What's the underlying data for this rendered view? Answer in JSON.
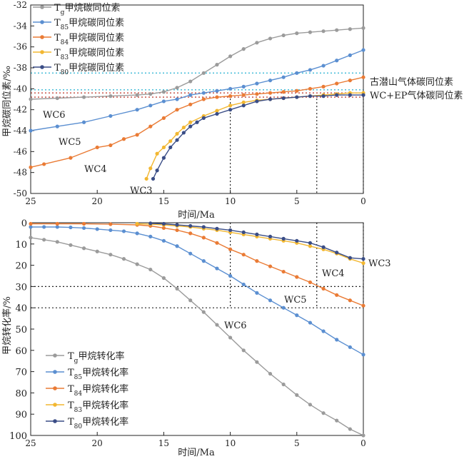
{
  "chart_data": [
    {
      "type": "line",
      "xlabel": "时间/Ma",
      "ylabel": "甲烷碳同位素/‰",
      "xlim": [
        25,
        0
      ],
      "ylim": [
        -50,
        -32
      ],
      "xticks": [
        "25",
        "20",
        "15",
        "10",
        "5",
        "0"
      ],
      "yticks": [
        "-32",
        "-34",
        "-36",
        "-38",
        "-40",
        "-42",
        "-44",
        "-46",
        "-48",
        "-50"
      ],
      "legend_position": "top-center",
      "series": [
        {
          "name": "Tg甲烷碳同位素",
          "color": "#9b9b9b",
          "x": [
            25,
            23,
            21,
            19,
            17,
            16,
            15,
            14,
            13,
            12,
            11,
            10,
            9,
            8,
            7,
            6,
            5,
            4,
            3,
            2,
            1,
            0
          ],
          "y": [
            -41,
            -40.9,
            -40.8,
            -40.7,
            -40.6,
            -40.5,
            -40.3,
            -39.9,
            -39.3,
            -38.5,
            -37.7,
            -36.9,
            -36.2,
            -35.6,
            -35.2,
            -34.9,
            -34.7,
            -34.6,
            -34.5,
            -34.4,
            -34.3,
            -34.2
          ]
        },
        {
          "name": "T85甲烷碳同位素",
          "color": "#5b8fd1",
          "x": [
            25,
            23,
            21,
            19,
            17,
            16,
            15,
            14,
            13,
            12,
            11,
            10,
            9,
            8,
            7,
            6,
            5,
            4,
            3,
            2,
            1,
            0
          ],
          "y": [
            -44,
            -43.6,
            -43.2,
            -42.6,
            -42,
            -41.6,
            -41.2,
            -41,
            -40.6,
            -40.4,
            -40.2,
            -40,
            -39.8,
            -39.5,
            -39.2,
            -38.9,
            -38.5,
            -38.2,
            -37.8,
            -37.3,
            -36.8,
            -36.3
          ]
        },
        {
          "name": "T84甲烷碳同位素",
          "color": "#ea7b35",
          "x": [
            25,
            24,
            22,
            20,
            19,
            18,
            17,
            16,
            15,
            14,
            13,
            12,
            11,
            10,
            9,
            8,
            7,
            6,
            5,
            4,
            3,
            2,
            1,
            0
          ],
          "y": [
            -47.5,
            -47.2,
            -46.6,
            -45.6,
            -45.4,
            -44.8,
            -44.4,
            -43.6,
            -42.8,
            -42,
            -41.5,
            -41,
            -40.8,
            -40.7,
            -40.6,
            -40.5,
            -40.4,
            -40.3,
            -40.2,
            -40,
            -39.8,
            -39.5,
            -39.2,
            -38.9
          ]
        },
        {
          "name": "T83甲烷碳同位素",
          "color": "#f2b731",
          "x": [
            16.3,
            16,
            15.5,
            15,
            14.5,
            14,
            13.5,
            13,
            12,
            11,
            10,
            9,
            8,
            7,
            6,
            5,
            4,
            3,
            2,
            1,
            0
          ],
          "y": [
            -48.6,
            -47.6,
            -46.2,
            -45.6,
            -45,
            -44.3,
            -43.7,
            -43.2,
            -42.6,
            -42.1,
            -41.6,
            -41.3,
            -41.1,
            -41,
            -40.9,
            -40.8,
            -40.7,
            -40.6,
            -40.5,
            -40.4,
            -40.4
          ]
        },
        {
          "name": "T80甲烷碳同位素",
          "color": "#3a4d86",
          "x": [
            15.8,
            15.5,
            15,
            14.5,
            14,
            13.5,
            13,
            12.5,
            12,
            11,
            10,
            9,
            8,
            7,
            6,
            5,
            4,
            3,
            2,
            1,
            0
          ],
          "y": [
            -48.6,
            -47.8,
            -46.6,
            -45.6,
            -44.9,
            -44.2,
            -43.6,
            -43.2,
            -42.8,
            -42.4,
            -42,
            -41.6,
            -41.2,
            -41,
            -40.9,
            -40.8,
            -40.7,
            -40.7,
            -40.6,
            -40.6,
            -40.6
          ]
        }
      ],
      "reference_lines": [
        {
          "y": -38.5,
          "color": "#38b8d6"
        },
        {
          "y": -40.1,
          "color": "#38b8d6"
        },
        {
          "y": -40.4,
          "color": "#c0453a"
        },
        {
          "y": -40.8,
          "color": "#c0453a"
        }
      ],
      "reference_labels": [
        "古潜山气体碳同位素",
        "WC+EP气体碳同位素"
      ],
      "group_labels": [
        "WC6",
        "WC5",
        "WC4",
        "WC3"
      ],
      "vlines_x": [
        10,
        3.5,
        0
      ]
    },
    {
      "type": "line",
      "xlabel": "时间/Ma",
      "ylabel": "甲烷转化率/%",
      "xlim": [
        25,
        0
      ],
      "ylim": [
        0,
        100
      ],
      "y_inverted": true,
      "xticks": [
        "25",
        "20",
        "15",
        "10",
        "5",
        "0"
      ],
      "yticks": [
        "0",
        "10",
        "20",
        "30",
        "40",
        "50",
        "60",
        "70",
        "80",
        "90",
        "100"
      ],
      "legend_position": "bottom-left",
      "series": [
        {
          "name": "Tg甲烷转化率",
          "color": "#9b9b9b",
          "x": [
            25,
            24,
            23,
            22,
            21,
            20,
            19,
            18,
            17,
            16,
            15,
            14,
            13,
            12,
            11,
            10,
            9,
            8,
            7,
            6,
            5,
            4,
            3,
            2,
            1,
            0
          ],
          "y": [
            7,
            8,
            9,
            10.5,
            12,
            13.5,
            15,
            17,
            19.5,
            22,
            26,
            31,
            36.5,
            42,
            48,
            54,
            60,
            65.5,
            71,
            76,
            81,
            85.5,
            89.5,
            93,
            97,
            100
          ]
        },
        {
          "name": "T85甲烷转化率",
          "color": "#5b8fd1",
          "x": [
            25,
            24,
            23,
            22,
            21,
            20,
            19,
            18,
            17,
            16,
            15,
            14,
            13,
            12,
            11,
            10,
            9,
            8,
            7,
            6,
            5,
            4,
            3,
            2,
            1,
            0
          ],
          "y": [
            2,
            2,
            2,
            2.2,
            2.5,
            3,
            3.5,
            4,
            5,
            6.5,
            8.5,
            11,
            14.5,
            18,
            21.5,
            25,
            29,
            33,
            36.5,
            40,
            43.5,
            47,
            51,
            55,
            58.5,
            62
          ]
        },
        {
          "name": "T84甲烷转化率",
          "color": "#ea7b35",
          "x": [
            25,
            23,
            21,
            19,
            17,
            16,
            15,
            14,
            13,
            12,
            11,
            10,
            9,
            8,
            7,
            6,
            5,
            4,
            3,
            2,
            1,
            0
          ],
          "y": [
            0.5,
            0.5,
            0.5,
            0.7,
            1,
            1.5,
            2.5,
            3.5,
            5,
            7,
            9.5,
            12.5,
            15,
            18,
            20.5,
            23,
            25.5,
            28,
            31,
            34,
            36.5,
            39
          ]
        },
        {
          "name": "T83甲烷转化率",
          "color": "#f2b731",
          "x": [
            17,
            16,
            15,
            14,
            13,
            12,
            11,
            10,
            9,
            8,
            7,
            6,
            5,
            4,
            3,
            2,
            1,
            0
          ],
          "y": [
            0.5,
            0.7,
            1,
            1.5,
            2,
            2.8,
            3.5,
            4.5,
            5.5,
            6.5,
            7.5,
            8.5,
            9.5,
            11,
            12.5,
            14.5,
            17,
            19
          ]
        },
        {
          "name": "T80甲烷转化率",
          "color": "#3a4d86",
          "x": [
            16,
            15,
            14,
            13,
            12,
            11,
            10,
            9,
            8,
            7,
            6,
            5,
            4,
            3,
            2,
            1,
            0
          ],
          "y": [
            0.3,
            0.5,
            1,
            1.5,
            2,
            2.8,
            3.5,
            4.5,
            5.5,
            6.5,
            7.5,
            8.5,
            9.5,
            11.5,
            14,
            16.5,
            17
          ]
        }
      ],
      "reference_lines_y": [
        30,
        40
      ],
      "group_labels": [
        "WC4",
        "WC3",
        "WC5",
        "WC6"
      ],
      "vlines_x": [
        10,
        3.5,
        0
      ]
    }
  ]
}
